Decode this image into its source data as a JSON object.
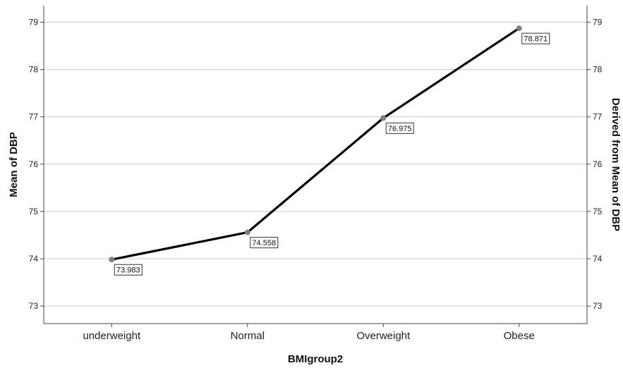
{
  "chart_data": {
    "type": "line",
    "categories": [
      "underweight",
      "Normal",
      "Overweight",
      "Obese"
    ],
    "series": [
      {
        "values": [
          73.983,
          74.558,
          76.975,
          78.871
        ]
      }
    ],
    "data_labels": [
      "73.983",
      "74.558",
      "76.975",
      "78.871"
    ],
    "xlabel": "BMIgroup2",
    "ylabel": "Mean of DBP",
    "y2label": "Derived from Mean of DBP",
    "ylim": [
      72.63,
      79.35
    ],
    "yticks": [
      "73",
      "74",
      "75",
      "76",
      "77",
      "78",
      "79"
    ],
    "grid": true,
    "colors": {
      "line": "#000000",
      "marker": "#808080",
      "grid": "#c8c8c8",
      "axis": "#444444"
    }
  }
}
